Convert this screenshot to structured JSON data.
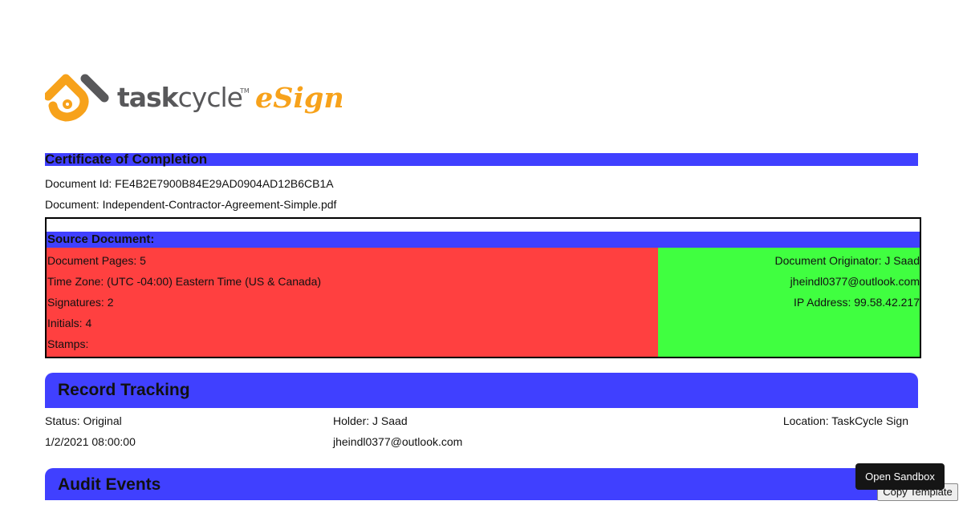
{
  "logo": {
    "brand": "taskcycle",
    "tm": "™",
    "product": "eSign",
    "colors": {
      "orange": "#f7a21b",
      "gray": "#58585a"
    }
  },
  "certificate": {
    "title": "Certificate of Completion",
    "document_id": "Document Id: FE4B2E7900B84E29AD0904AD12B6CB1A",
    "document": "Document: Independent-Contractor-Agreement-Simple.pdf"
  },
  "source": {
    "title": "Source Document:",
    "left": [
      "Document Pages: 5",
      "Time Zone: (UTC -04:00) Eastern Time (US & Canada)",
      "Signatures: 2",
      "Initials: 4",
      "Stamps:"
    ],
    "right": [
      "Document Originator: J Saad",
      "jheindl0377@outlook.com",
      "IP Address: 99.58.42.217"
    ]
  },
  "record": {
    "title": "Record Tracking",
    "status": "Status: Original",
    "date": "1/2/2021 08:00:00",
    "holder": "Holder: J Saad",
    "holder_email": "jheindl0377@outlook.com",
    "location": "Location: TaskCycle Sign"
  },
  "audit": {
    "title": "Audit Events"
  },
  "buttons": {
    "sandbox": "Open Sandbox",
    "copy": "Copy Template"
  },
  "colors": {
    "blue": "#4040ff",
    "red": "#ff4040",
    "green": "#40ff40"
  }
}
